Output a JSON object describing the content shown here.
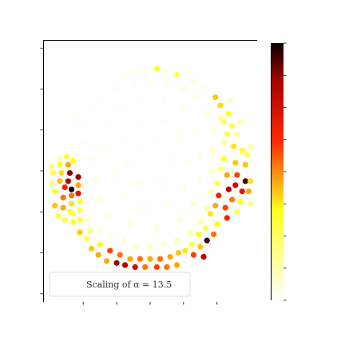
{
  "chart_data": {
    "type": "scatter",
    "title": "",
    "xlabel": "",
    "ylabel": "",
    "xlim": [
      -3.2,
      3.2
    ],
    "ylim": [
      -3.2,
      3.2
    ],
    "xticks": [
      -2,
      -1,
      0,
      1,
      2
    ],
    "yticks": [
      -3,
      -2,
      -1,
      0,
      1,
      2,
      3
    ],
    "grid": false,
    "legend": {
      "text": "Scaling of α = 13.5",
      "placement": "lower-left"
    },
    "colorbar": {
      "colormap": "hot_r",
      "range": [
        0,
        1
      ],
      "ticks": 9
    },
    "points": [
      {
        "x": 0.2,
        "y": 2.5,
        "v": 0.35
      },
      {
        "x": -0.4,
        "y": 2.4,
        "v": 0.05
      },
      {
        "x": 0.8,
        "y": 2.35,
        "v": 0.3
      },
      {
        "x": 1.3,
        "y": 2.2,
        "v": 0.08
      },
      {
        "x": 1.6,
        "y": 2.05,
        "v": 0.05
      },
      {
        "x": 1.95,
        "y": 1.8,
        "v": 0.45
      },
      {
        "x": 2.1,
        "y": 1.6,
        "v": 0.42
      },
      {
        "x": 2.35,
        "y": 1.4,
        "v": 0.35
      },
      {
        "x": 2.2,
        "y": 1.2,
        "v": 0.3
      },
      {
        "x": 2.45,
        "y": 1.1,
        "v": 0.3
      },
      {
        "x": 2.6,
        "y": 0.9,
        "v": 0.22
      },
      {
        "x": 2.3,
        "y": 0.9,
        "v": 0.3
      },
      {
        "x": 2.5,
        "y": 0.6,
        "v": 0.4
      },
      {
        "x": 2.75,
        "y": 0.5,
        "v": 0.35
      },
      {
        "x": 2.2,
        "y": 0.3,
        "v": 0.35
      },
      {
        "x": 2.55,
        "y": 0.2,
        "v": 0.45
      },
      {
        "x": 2.85,
        "y": 0.15,
        "v": 0.45
      },
      {
        "x": 2.1,
        "y": 0.05,
        "v": 0.25
      },
      {
        "x": 2.3,
        "y": -0.1,
        "v": 0.5
      },
      {
        "x": 2.6,
        "y": -0.1,
        "v": 0.6
      },
      {
        "x": 2.85,
        "y": -0.25,
        "v": 0.95
      },
      {
        "x": 2.55,
        "y": -0.35,
        "v": 0.75
      },
      {
        "x": 2.35,
        "y": -0.45,
        "v": 0.8
      },
      {
        "x": 2.05,
        "y": -0.6,
        "v": 0.65
      },
      {
        "x": 2.45,
        "y": -0.7,
        "v": 0.55
      },
      {
        "x": 2.75,
        "y": -0.5,
        "v": 0.7
      },
      {
        "x": 2.95,
        "y": -0.5,
        "v": 0.5
      },
      {
        "x": 3.0,
        "y": -0.25,
        "v": 0.4
      },
      {
        "x": 2.7,
        "y": -0.75,
        "v": 0.35
      },
      {
        "x": 2.25,
        "y": -0.9,
        "v": 0.6
      },
      {
        "x": 1.95,
        "y": -0.85,
        "v": 0.5
      },
      {
        "x": 2.6,
        "y": -1.0,
        "v": 0.3
      },
      {
        "x": 2.3,
        "y": -1.15,
        "v": 0.65
      },
      {
        "x": 1.8,
        "y": -1.05,
        "v": 0.4
      },
      {
        "x": 2.0,
        "y": -1.3,
        "v": 0.35
      },
      {
        "x": 1.65,
        "y": -1.4,
        "v": 0.3
      },
      {
        "x": 1.9,
        "y": -1.55,
        "v": 0.55
      },
      {
        "x": 1.7,
        "y": -1.7,
        "v": 0.95
      },
      {
        "x": 1.45,
        "y": -1.55,
        "v": 0.35
      },
      {
        "x": 1.5,
        "y": -1.85,
        "v": 0.45
      },
      {
        "x": 1.25,
        "y": -1.8,
        "v": 0.3
      },
      {
        "x": 1.05,
        "y": -1.95,
        "v": 0.4
      },
      {
        "x": 0.85,
        "y": -2.0,
        "v": 0.45
      },
      {
        "x": 1.3,
        "y": -2.05,
        "v": 0.6
      },
      {
        "x": 1.6,
        "y": -2.1,
        "v": 0.8
      },
      {
        "x": 0.6,
        "y": -2.1,
        "v": 0.5
      },
      {
        "x": 0.3,
        "y": -2.15,
        "v": 0.55
      },
      {
        "x": 0.0,
        "y": -2.15,
        "v": 0.5
      },
      {
        "x": -0.3,
        "y": -2.15,
        "v": 0.55
      },
      {
        "x": -0.6,
        "y": -2.15,
        "v": 0.5
      },
      {
        "x": -0.9,
        "y": -2.05,
        "v": 0.55
      },
      {
        "x": -1.2,
        "y": -1.95,
        "v": 0.6
      },
      {
        "x": -0.75,
        "y": -2.3,
        "v": 0.8
      },
      {
        "x": -0.45,
        "y": -2.35,
        "v": 0.75
      },
      {
        "x": -0.15,
        "y": -2.35,
        "v": 0.55
      },
      {
        "x": 0.2,
        "y": -2.35,
        "v": 0.6
      },
      {
        "x": 0.5,
        "y": -2.35,
        "v": 0.55
      },
      {
        "x": 0.8,
        "y": -2.3,
        "v": 0.5
      },
      {
        "x": -1.0,
        "y": -2.25,
        "v": 0.85
      },
      {
        "x": -1.3,
        "y": -2.2,
        "v": 0.5
      },
      {
        "x": -1.55,
        "y": -2.05,
        "v": 0.5
      },
      {
        "x": -1.75,
        "y": -1.9,
        "v": 0.45
      },
      {
        "x": -1.5,
        "y": -1.8,
        "v": 0.35
      },
      {
        "x": -1.9,
        "y": -1.65,
        "v": 0.3
      },
      {
        "x": -2.1,
        "y": -1.5,
        "v": 0.45
      },
      {
        "x": -1.8,
        "y": -1.45,
        "v": 0.25
      },
      {
        "x": -2.3,
        "y": -1.25,
        "v": 0.35
      },
      {
        "x": -2.55,
        "y": -1.2,
        "v": 0.3
      },
      {
        "x": -2.1,
        "y": -1.2,
        "v": 0.3
      },
      {
        "x": -2.75,
        "y": -1.1,
        "v": 0.3
      },
      {
        "x": -2.4,
        "y": -1.0,
        "v": 0.35
      },
      {
        "x": -2.1,
        "y": -0.95,
        "v": 0.3
      },
      {
        "x": -2.6,
        "y": -0.9,
        "v": 0.5
      },
      {
        "x": -2.85,
        "y": -0.85,
        "v": 0.45
      },
      {
        "x": -2.35,
        "y": -0.8,
        "v": 0.4
      },
      {
        "x": -2.1,
        "y": -0.75,
        "v": 0.35
      },
      {
        "x": -2.6,
        "y": -0.65,
        "v": 0.55
      },
      {
        "x": -2.35,
        "y": -0.6,
        "v": 0.55
      },
      {
        "x": -2.15,
        "y": -0.55,
        "v": 0.7
      },
      {
        "x": -2.85,
        "y": -0.5,
        "v": 0.35
      },
      {
        "x": -2.55,
        "y": -0.4,
        "v": 0.65
      },
      {
        "x": -2.35,
        "y": -0.45,
        "v": 1.0
      },
      {
        "x": -2.15,
        "y": -0.35,
        "v": 0.5
      },
      {
        "x": -2.95,
        "y": -0.3,
        "v": 0.25
      },
      {
        "x": -2.7,
        "y": -0.25,
        "v": 0.45
      },
      {
        "x": -2.45,
        "y": -0.25,
        "v": 0.8
      },
      {
        "x": -2.15,
        "y": -0.15,
        "v": 0.85
      },
      {
        "x": -2.9,
        "y": -0.05,
        "v": 0.3
      },
      {
        "x": -2.65,
        "y": -0.05,
        "v": 0.4
      },
      {
        "x": -2.4,
        "y": -0.05,
        "v": 0.85
      },
      {
        "x": -2.7,
        "y": 0.15,
        "v": 0.35
      },
      {
        "x": -2.45,
        "y": 0.15,
        "v": 0.5
      },
      {
        "x": -2.95,
        "y": 0.1,
        "v": 0.25
      },
      {
        "x": -2.3,
        "y": 0.25,
        "v": 0.35
      },
      {
        "x": -2.5,
        "y": 0.35,
        "v": 0.3
      },
      {
        "x": -2.7,
        "y": 0.3,
        "v": 0.2
      },
      {
        "x": -2.3,
        "y": -1.05,
        "v": 0.3
      },
      {
        "x": -1.9,
        "y": -1.2,
        "v": 0.12
      },
      {
        "x": -1.5,
        "y": -1.5,
        "v": 0.1
      },
      {
        "x": -1.2,
        "y": -1.6,
        "v": 0.08
      },
      {
        "x": -0.8,
        "y": -1.7,
        "v": 0.1
      },
      {
        "x": -0.4,
        "y": -1.85,
        "v": 0.12
      },
      {
        "x": 0.0,
        "y": -1.85,
        "v": 0.15
      },
      {
        "x": 0.4,
        "y": -1.8,
        "v": 0.12
      },
      {
        "x": 0.8,
        "y": -1.7,
        "v": 0.15
      },
      {
        "x": 1.2,
        "y": -1.5,
        "v": 0.18
      },
      {
        "x": 1.5,
        "y": -1.25,
        "v": 0.2
      },
      {
        "x": 1.7,
        "y": -0.9,
        "v": 0.2
      },
      {
        "x": 1.8,
        "y": -0.5,
        "v": 0.15
      },
      {
        "x": 1.85,
        "y": 0.0,
        "v": 0.12
      },
      {
        "x": 1.85,
        "y": 0.5,
        "v": 0.12
      },
      {
        "x": 1.9,
        "y": 1.0,
        "v": 0.1
      },
      {
        "x": 1.7,
        "y": 1.4,
        "v": 0.1
      },
      {
        "x": 1.4,
        "y": 1.8,
        "v": 0.08
      },
      {
        "x": 1.0,
        "y": 2.0,
        "v": 0.08
      },
      {
        "x": 0.5,
        "y": 2.15,
        "v": 0.06
      },
      {
        "x": 0.0,
        "y": 2.2,
        "v": 0.05
      },
      {
        "x": -0.5,
        "y": 2.1,
        "v": 0.05
      },
      {
        "x": -1.0,
        "y": 2.0,
        "v": 0.04
      },
      {
        "x": -1.4,
        "y": 1.8,
        "v": 0.03
      },
      {
        "x": -1.7,
        "y": 1.5,
        "v": 0.03
      },
      {
        "x": -1.9,
        "y": 1.1,
        "v": 0.03
      },
      {
        "x": -2.0,
        "y": 0.7,
        "v": 0.04
      },
      {
        "x": -1.8,
        "y": 0.3,
        "v": 0.06
      },
      {
        "x": -1.6,
        "y": -0.2,
        "v": 0.08
      },
      {
        "x": -1.5,
        "y": -0.7,
        "v": 0.08
      },
      {
        "x": -1.2,
        "y": -1.1,
        "v": 0.07
      },
      {
        "x": -0.6,
        "y": -1.3,
        "v": 0.08
      },
      {
        "x": 0.2,
        "y": -1.4,
        "v": 0.1
      },
      {
        "x": 0.9,
        "y": -1.2,
        "v": 0.12
      },
      {
        "x": 1.3,
        "y": -0.8,
        "v": 0.12
      },
      {
        "x": 1.5,
        "y": -0.2,
        "v": 0.1
      },
      {
        "x": 1.5,
        "y": 0.4,
        "v": 0.08
      },
      {
        "x": 1.4,
        "y": 1.0,
        "v": 0.06
      },
      {
        "x": 1.0,
        "y": 1.5,
        "v": 0.05
      },
      {
        "x": 0.4,
        "y": 1.7,
        "v": 0.04
      },
      {
        "x": -0.3,
        "y": 1.7,
        "v": 0.03
      },
      {
        "x": -0.9,
        "y": 1.5,
        "v": 0.03
      },
      {
        "x": -1.3,
        "y": 1.1,
        "v": 0.03
      },
      {
        "x": -1.4,
        "y": 0.5,
        "v": 0.04
      },
      {
        "x": -1.1,
        "y": -0.1,
        "v": 0.05
      },
      {
        "x": -0.8,
        "y": -0.6,
        "v": 0.05
      },
      {
        "x": -0.2,
        "y": -0.9,
        "v": 0.06
      },
      {
        "x": 0.5,
        "y": -0.8,
        "v": 0.07
      },
      {
        "x": 1.0,
        "y": -0.4,
        "v": 0.07
      },
      {
        "x": 1.1,
        "y": 0.2,
        "v": 0.06
      },
      {
        "x": 0.9,
        "y": 0.8,
        "v": 0.05
      },
      {
        "x": 0.4,
        "y": 1.2,
        "v": 0.04
      },
      {
        "x": -0.3,
        "y": 1.2,
        "v": 0.03
      },
      {
        "x": -0.8,
        "y": 0.8,
        "v": 0.03
      },
      {
        "x": -0.7,
        "y": 0.2,
        "v": 0.04
      },
      {
        "x": -0.3,
        "y": -0.3,
        "v": 0.04
      },
      {
        "x": 0.3,
        "y": -0.3,
        "v": 0.05
      },
      {
        "x": 0.6,
        "y": 0.3,
        "v": 0.04
      },
      {
        "x": 0.2,
        "y": 0.7,
        "v": 0.03
      },
      {
        "x": -0.3,
        "y": 0.5,
        "v": 0.03
      },
      {
        "x": -2.2,
        "y": 1.4,
        "v": 0.03
      },
      {
        "x": -0.8,
        "y": 2.3,
        "v": 0.04
      },
      {
        "x": 0.5,
        "y": 2.45,
        "v": 0.06
      },
      {
        "x": 1.1,
        "y": 2.4,
        "v": 0.06
      },
      {
        "x": 2.4,
        "y": 1.7,
        "v": 0.12
      },
      {
        "x": 2.7,
        "y": 1.2,
        "v": 0.15
      },
      {
        "x": 3.0,
        "y": 0.6,
        "v": 0.2
      },
      {
        "x": 3.0,
        "y": -0.8,
        "v": 0.25
      },
      {
        "x": 2.9,
        "y": 0.4,
        "v": 0.3
      },
      {
        "x": 2.2,
        "y": 0.7,
        "v": 0.22
      },
      {
        "x": 2.1,
        "y": 1.3,
        "v": 0.18
      },
      {
        "x": 2.0,
        "y": -0.3,
        "v": 0.3
      }
    ]
  }
}
